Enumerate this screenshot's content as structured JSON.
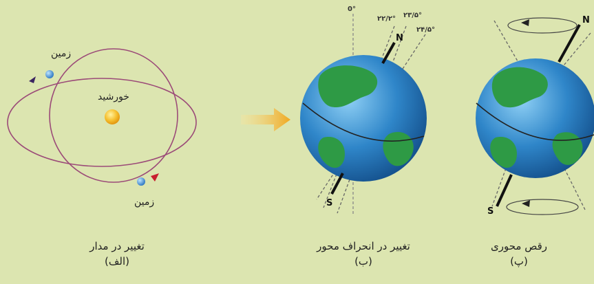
{
  "panels": {
    "orbit": {
      "sun_label": "خورشید",
      "earth_label_top": "زمین",
      "earth_label_bottom": "زمین",
      "caption": "تغییر در مدار",
      "letter": "(الف)"
    },
    "tilt": {
      "angles": [
        "0°",
        "۲۲/۲°",
        "۲۳/۵°",
        "۲۴/۵°"
      ],
      "north": "N",
      "south": "S",
      "caption": "تغییر در انحراف محور",
      "letter": "(ب)"
    },
    "precession": {
      "north": "N",
      "south": "S",
      "caption": "رقص محوری",
      "letter": "(پ)"
    }
  },
  "colors": {
    "background": "#dce5b0",
    "orbit": "#9b4a78",
    "ocean": "#2f86c9",
    "land": "#2e9a45",
    "sun": "#f4b21a",
    "arrow": "#f0a820"
  }
}
